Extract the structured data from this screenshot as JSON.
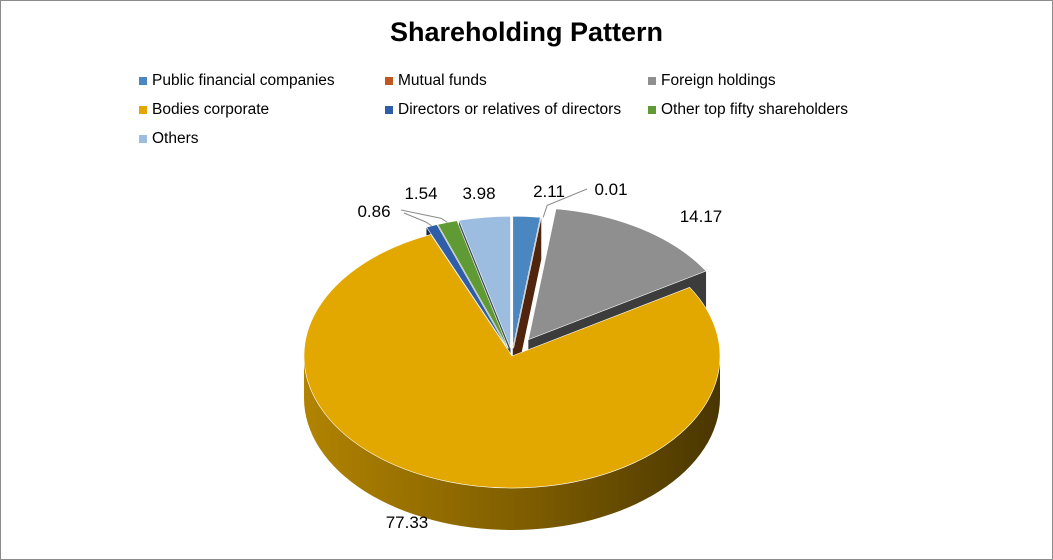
{
  "chart_data": {
    "type": "pie",
    "title": "Shareholding Pattern",
    "legend_position": "top",
    "three_d": true,
    "exploded": true,
    "slices": [
      {
        "name": "Public financial companies",
        "value": 2.11,
        "label": "2.11",
        "color": "#4a86bf"
      },
      {
        "name": "Mutual funds",
        "value": 0.01,
        "label": "0.01",
        "color": "#c0571f"
      },
      {
        "name": "Foreign holdings",
        "value": 14.17,
        "label": "14.17",
        "color": "#8f8f8f"
      },
      {
        "name": "Bodies corporate",
        "value": 77.33,
        "label": "77.33",
        "color": "#e3a800"
      },
      {
        "name": "Directors or relatives of directors",
        "value": 0.86,
        "label": "0.86",
        "color": "#2f5da8"
      },
      {
        "name": "Other top fifty shareholders",
        "value": 1.54,
        "label": "1.54",
        "color": "#5f9a35"
      },
      {
        "name": "Others",
        "value": 3.98,
        "label": "3.98",
        "color": "#9cbce0"
      }
    ]
  }
}
